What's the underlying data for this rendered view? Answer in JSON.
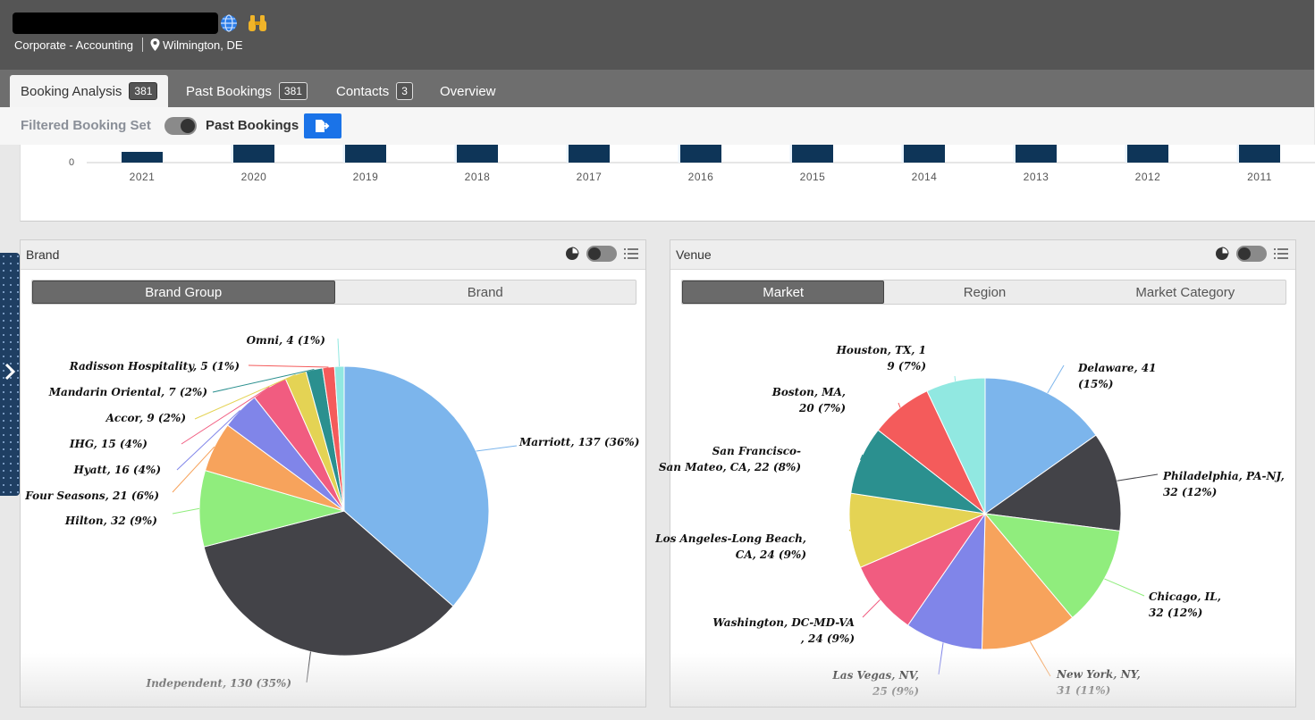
{
  "header": {
    "company_line": "Corporate - Accounting",
    "location": "Wilmington, DE",
    "icons": [
      "globe-icon",
      "binoculars-icon",
      "location-pin-icon"
    ]
  },
  "tabs": [
    {
      "label": "Booking Analysis",
      "count": "381",
      "active": true
    },
    {
      "label": "Past Bookings",
      "count": "381",
      "active": false
    },
    {
      "label": "Contacts",
      "count": "3",
      "active": false
    },
    {
      "label": "Overview",
      "count": "",
      "active": false
    }
  ],
  "filter": {
    "left_label": "Filtered Booking Set",
    "right_label": "Past Bookings",
    "export_icon": "export-icon"
  },
  "timeline": {
    "zero_label": "0",
    "years": [
      "2021",
      "2020",
      "2019",
      "2018",
      "2017",
      "2016",
      "2015",
      "2014",
      "2013",
      "2012",
      "2011"
    ]
  },
  "brand_panel": {
    "title": "Brand",
    "segments": [
      {
        "label": "Brand Group",
        "active": true
      },
      {
        "label": "Brand",
        "active": false
      }
    ]
  },
  "venue_panel": {
    "title": "Venue",
    "segments": [
      {
        "label": "Market",
        "active": true
      },
      {
        "label": "Region",
        "active": false
      },
      {
        "label": "Market Category",
        "active": false
      }
    ]
  },
  "colors": {
    "accent_blue": "#1a73e8",
    "bar_navy": "#0e3558",
    "pie_palette": [
      "#7cb5ec",
      "#434348",
      "#90ed7d",
      "#f7a35c",
      "#8085e9",
      "#f15c80",
      "#e4d354",
      "#2b908f",
      "#f45b5b",
      "#91e8e1"
    ]
  },
  "chart_data": [
    {
      "type": "pie",
      "title": "",
      "slices": [
        {
          "label": "Marriott, 137 (36%)",
          "value": 137
        },
        {
          "label": "Independent, 130 (35%)",
          "value": 130
        },
        {
          "label": "Hilton, 32 (9%)",
          "value": 32
        },
        {
          "label": "Four Seasons, 21 (6%)",
          "value": 21
        },
        {
          "label": "Hyatt, 16 (4%)",
          "value": 16
        },
        {
          "label": "IHG, 15 (4%)",
          "value": 15
        },
        {
          "label": "Accor, 9 (2%)",
          "value": 9
        },
        {
          "label": "Mandarin Oriental, 7 (2%)",
          "value": 7
        },
        {
          "label": "Radisson Hospitality, 5 (1%)",
          "value": 5
        },
        {
          "label": "Omni, 4 (1%)",
          "value": 4
        }
      ]
    },
    {
      "type": "pie",
      "title": "",
      "slices": [
        {
          "label": "Delaware, 41 (15%)",
          "value": 41
        },
        {
          "label": "Philadelphia, PA-NJ, 32 (12%)",
          "value": 32
        },
        {
          "label": "Chicago, IL, 32 (12%)",
          "value": 32
        },
        {
          "label": "New York, NY, 31 (11%)",
          "value": 31
        },
        {
          "label": "Las Vegas, NV, 25 (9%)",
          "value": 25
        },
        {
          "label": "Washington, DC-MD-VA, 24 (9%)",
          "value": 24
        },
        {
          "label": "Los Angeles-Long Beach, CA, 24 (9%)",
          "value": 24
        },
        {
          "label": "San Francisco-San Mateo, CA, 22 (8%)",
          "value": 22
        },
        {
          "label": "Boston, MA, 20 (7%)",
          "value": 20
        },
        {
          "label": "Houston, TX, 19 (7%)",
          "value": 19
        }
      ]
    }
  ]
}
